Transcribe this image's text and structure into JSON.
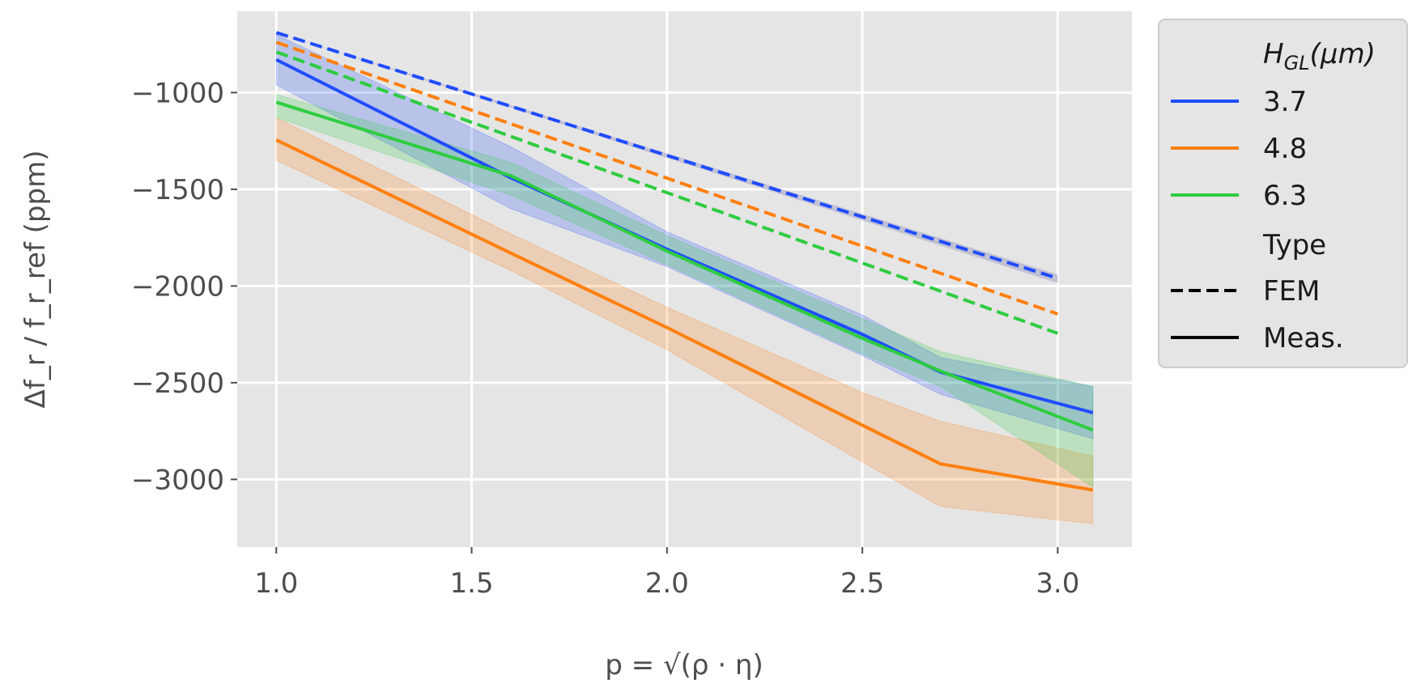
{
  "chart_data": {
    "type": "line",
    "xlabel": "p = √(ρ · η)",
    "ylabel": "Δf_r / f_r_ref (ppm)",
    "xlim": [
      0.9,
      3.19
    ],
    "ylim": [
      -3350,
      -580
    ],
    "xticks": [
      1.0,
      1.5,
      2.0,
      2.5,
      3.0
    ],
    "xtick_labels": [
      "1.0",
      "1.5",
      "2.0",
      "2.5",
      "3.0"
    ],
    "yticks": [
      -1000,
      -1500,
      -2000,
      -2500,
      -3000
    ],
    "ytick_labels": [
      "−1000",
      "−1500",
      "−2000",
      "−2500",
      "−3000"
    ],
    "grid": true,
    "legend_position": "outside-right",
    "legend": {
      "hue_title": "H_GL(μm)",
      "hue_title_main": "H",
      "hue_title_sub": "GL",
      "hue_title_tail": "(μm)",
      "type_title": "Type",
      "entries": [
        {
          "label": "3.7",
          "color": "#1f4cff"
        },
        {
          "label": "4.8",
          "color": "#ff7f0e"
        },
        {
          "label": "6.3",
          "color": "#2ecc40"
        }
      ],
      "type_entries": [
        {
          "label": "FEM",
          "style": "dashed"
        },
        {
          "label": "Meas.",
          "style": "solid"
        }
      ]
    },
    "series": [
      {
        "name": "3.7 FEM",
        "hue": "3.7",
        "type": "FEM",
        "color": "#1f4cff",
        "x": [
          1.0,
          3.0
        ],
        "y": [
          -690,
          -1960
        ],
        "band": [
          [
            -690,
            -690
          ],
          [
            -1940,
            -1985
          ]
        ]
      },
      {
        "name": "4.8 FEM",
        "hue": "4.8",
        "type": "FEM",
        "color": "#ff7f0e",
        "x": [
          1.0,
          3.0
        ],
        "y": [
          -740,
          -2145
        ],
        "band": null
      },
      {
        "name": "6.3 FEM",
        "hue": "6.3",
        "type": "FEM",
        "color": "#2ecc40",
        "x": [
          1.0,
          3.0
        ],
        "y": [
          -790,
          -2245
        ],
        "band": null
      },
      {
        "name": "3.7 Meas.",
        "hue": "3.7",
        "type": "Meas.",
        "color": "#1f4cff",
        "x": [
          1.0,
          1.6,
          2.0,
          2.5,
          2.7,
          3.09
        ],
        "y": [
          -830,
          -1440,
          -1810,
          -2250,
          -2445,
          -2655
        ],
        "band_low": [
          -960,
          -1600,
          -1900,
          -2360,
          -2560,
          -2790
        ],
        "band_high": [
          -700,
          -1280,
          -1720,
          -2150,
          -2370,
          -2520
        ]
      },
      {
        "name": "4.8 Meas.",
        "hue": "4.8",
        "type": "Meas.",
        "color": "#ff7f0e",
        "x": [
          1.0,
          1.6,
          2.0,
          2.5,
          2.7,
          3.09
        ],
        "y": [
          -1245,
          -1830,
          -2215,
          -2720,
          -2920,
          -3055
        ],
        "band_low": [
          -1350,
          -1920,
          -2330,
          -2910,
          -3140,
          -3230
        ],
        "band_high": [
          -1130,
          -1730,
          -2110,
          -2550,
          -2700,
          -2880
        ]
      },
      {
        "name": "6.3 Meas.",
        "hue": "6.3",
        "type": "Meas.",
        "color": "#2ecc40",
        "x": [
          1.0,
          1.6,
          2.0,
          2.5,
          2.7,
          3.09
        ],
        "y": [
          -1050,
          -1430,
          -1820,
          -2270,
          -2440,
          -2745
        ],
        "band_low": [
          -1130,
          -1530,
          -1890,
          -2350,
          -2520,
          -3040
        ],
        "band_high": [
          -1010,
          -1360,
          -1740,
          -2170,
          -2340,
          -2520
        ]
      }
    ]
  }
}
